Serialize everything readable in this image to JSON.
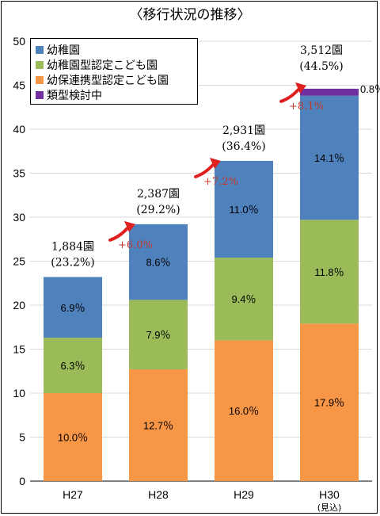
{
  "title": "〈移行状況の推移〉",
  "chart_data": {
    "type": "bar",
    "stacked": true,
    "ylim": [
      0,
      50
    ],
    "yticks": [
      0,
      5,
      10,
      15,
      20,
      25,
      30,
      35,
      40,
      45,
      50
    ],
    "grid": true,
    "legend_position": "top-left",
    "categories": [
      "H27",
      "H28",
      "H29",
      "H30"
    ],
    "category_notes": [
      "",
      "",
      "",
      "(見込)"
    ],
    "series": [
      {
        "name": "幼保連携型認定こども園",
        "color": "#F79646",
        "values": [
          10.0,
          12.7,
          16.0,
          17.9
        ],
        "labels": [
          "10.0％",
          "12.7％",
          "16.0％",
          "17.9％"
        ]
      },
      {
        "name": "幼稚園型認定こども園",
        "color": "#9BBB59",
        "values": [
          6.3,
          7.9,
          9.4,
          11.8
        ],
        "labels": [
          "6.3％",
          "7.9％",
          "9.4％",
          "11.8％"
        ]
      },
      {
        "name": "幼稚園",
        "color": "#4F81BD",
        "values": [
          6.9,
          8.6,
          11.0,
          14.1
        ],
        "labels": [
          "6.9％",
          "8.6％",
          "11.0％",
          "14.1％"
        ]
      },
      {
        "name": "類型検討中",
        "color": "#7030A0",
        "values": [
          0,
          0,
          0,
          0.8
        ],
        "labels": [
          "",
          "",
          "",
          "0.8％"
        ]
      }
    ],
    "legend_order": [
      "幼稚園",
      "幼稚園型認定こども園",
      "幼保連携型認定こども園",
      "類型検討中"
    ],
    "totals": [
      {
        "count": "1,884園",
        "pct": "(23.2%)"
      },
      {
        "count": "2,387園",
        "pct": "(29.2%)"
      },
      {
        "count": "2,931園",
        "pct": "(36.4%)"
      },
      {
        "count": "3,512園",
        "pct": "(44.5%)"
      }
    ],
    "increases": [
      "+6.0%",
      "+7.2%",
      "+8.1%"
    ],
    "arrow_color": "#E02020",
    "increase_color": "#C0392B"
  }
}
